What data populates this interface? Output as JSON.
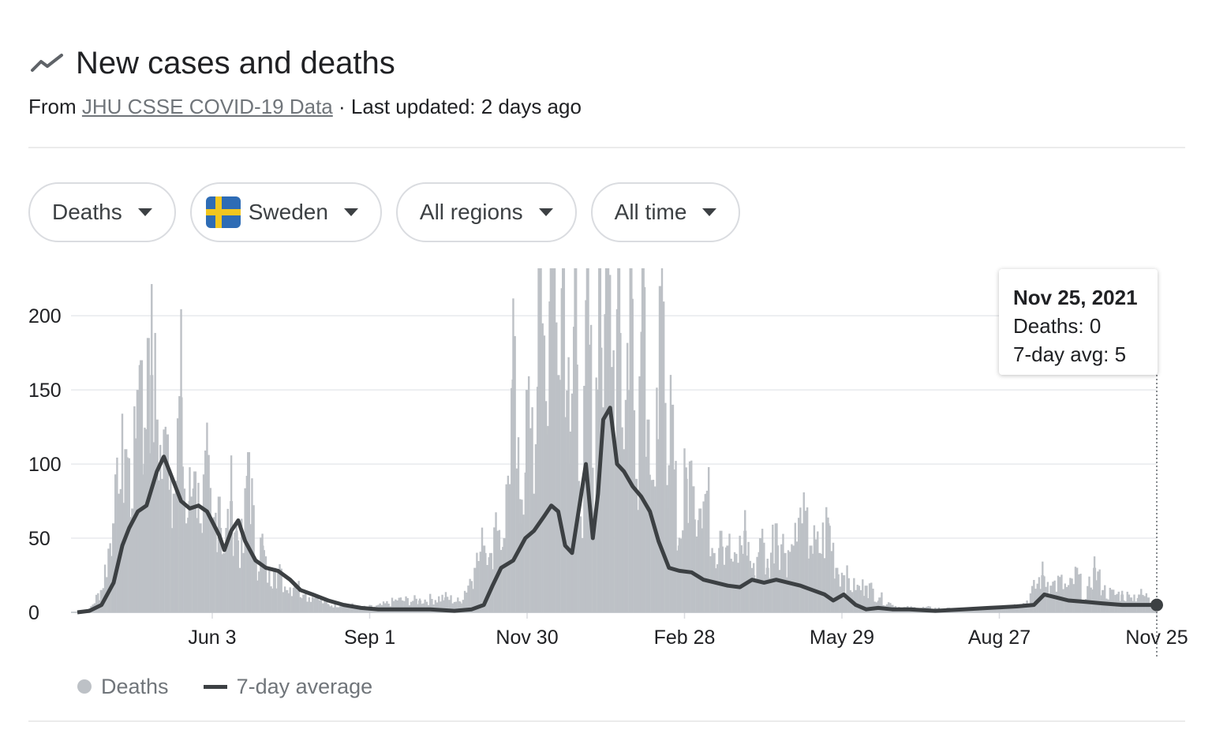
{
  "header": {
    "title": "New cases and deaths",
    "from_label": "From",
    "source_link": "JHU CSSE COVID-19 Data",
    "separator": "·",
    "last_updated": "Last updated: 2 days ago",
    "icon": "trending-line-icon"
  },
  "filters": {
    "metric": "Deaths",
    "country": "Sweden",
    "country_flag_colors": {
      "blue": "#2e6cb5",
      "yellow": "#f2c61f"
    },
    "region": "All regions",
    "timespan": "All time"
  },
  "tooltip": {
    "date": "Nov 25, 2021",
    "deaths": "Deaths: 0",
    "avg": "7-day avg: 5"
  },
  "legend": {
    "deaths": "Deaths",
    "avg": "7-day average"
  },
  "colors": {
    "bars": "#bdc1c6",
    "line": "#3c4043",
    "grid": "#e8eaed"
  },
  "chart_data": {
    "type": "bar",
    "overlay_type": "line",
    "y_ticks": [
      "0",
      "50",
      "100",
      "150",
      "200"
    ],
    "ylim": [
      0,
      232
    ],
    "x_ticks": [
      "Jun 3",
      "Sep 1",
      "Nov 30",
      "Feb 28",
      "May 29",
      "Aug 27",
      "Nov 25"
    ],
    "x_start": "2020-03-11",
    "x_end": "2021-11-25",
    "grid": true,
    "legend_position": "bottom-left",
    "series": [
      {
        "name": "Deaths",
        "kind": "bars",
        "points": [
          [
            "2020-03-11",
            0
          ],
          [
            "2020-03-18",
            2
          ],
          [
            "2020-03-25",
            15
          ],
          [
            "2020-04-01",
            60
          ],
          [
            "2020-04-04",
            80
          ],
          [
            "2020-04-08",
            110
          ],
          [
            "2020-04-12",
            70
          ],
          [
            "2020-04-15",
            150
          ],
          [
            "2020-04-17",
            170
          ],
          [
            "2020-04-19",
            100
          ],
          [
            "2020-04-21",
            185
          ],
          [
            "2020-04-23",
            160
          ],
          [
            "2020-04-26",
            130
          ],
          [
            "2020-04-29",
            90
          ],
          [
            "2020-05-02",
            120
          ],
          [
            "2020-05-06",
            80
          ],
          [
            "2020-05-10",
            145
          ],
          [
            "2020-05-13",
            60
          ],
          [
            "2020-05-15",
            75
          ],
          [
            "2020-05-18",
            95
          ],
          [
            "2020-05-21",
            60
          ],
          [
            "2020-05-25",
            90
          ],
          [
            "2020-05-28",
            50
          ],
          [
            "2020-06-01",
            78
          ],
          [
            "2020-06-04",
            40
          ],
          [
            "2020-06-08",
            75
          ],
          [
            "2020-06-11",
            55
          ],
          [
            "2020-06-15",
            40
          ],
          [
            "2020-06-18",
            108
          ],
          [
            "2020-06-22",
            35
          ],
          [
            "2020-06-26",
            45
          ],
          [
            "2020-06-29",
            20
          ],
          [
            "2020-07-03",
            30
          ],
          [
            "2020-07-06",
            25
          ],
          [
            "2020-07-10",
            15
          ],
          [
            "2020-07-15",
            20
          ],
          [
            "2020-07-20",
            12
          ],
          [
            "2020-07-27",
            10
          ],
          [
            "2020-08-03",
            5
          ],
          [
            "2020-08-12",
            6
          ],
          [
            "2020-08-22",
            3
          ],
          [
            "2020-09-01",
            4
          ],
          [
            "2020-09-12",
            8
          ],
          [
            "2020-09-25",
            8
          ],
          [
            "2020-10-10",
            10
          ],
          [
            "2020-10-18",
            7
          ],
          [
            "2020-10-27",
            30
          ],
          [
            "2020-11-01",
            45
          ],
          [
            "2020-11-05",
            40
          ],
          [
            "2020-11-09",
            55
          ],
          [
            "2020-11-13",
            50
          ],
          [
            "2020-11-18",
            157
          ],
          [
            "2020-11-22",
            60
          ],
          [
            "2020-11-26",
            150
          ],
          [
            "2020-11-30",
            80
          ],
          [
            "2020-12-03",
            232
          ],
          [
            "2020-12-07",
            120
          ],
          [
            "2020-12-10",
            232
          ],
          [
            "2020-12-14",
            160
          ],
          [
            "2020-12-17",
            232
          ],
          [
            "2020-12-21",
            100
          ],
          [
            "2020-12-24",
            232
          ],
          [
            "2020-12-28",
            50
          ],
          [
            "2020-12-31",
            232
          ],
          [
            "2021-01-04",
            60
          ],
          [
            "2021-01-07",
            232
          ],
          [
            "2021-01-11",
            232
          ],
          [
            "2021-01-14",
            150
          ],
          [
            "2021-01-18",
            232
          ],
          [
            "2021-01-21",
            110
          ],
          [
            "2021-01-25",
            232
          ],
          [
            "2021-01-28",
            90
          ],
          [
            "2021-02-01",
            232
          ],
          [
            "2021-02-04",
            130
          ],
          [
            "2021-02-08",
            60
          ],
          [
            "2021-02-11",
            220
          ],
          [
            "2021-02-15",
            70
          ],
          [
            "2021-02-18",
            140
          ],
          [
            "2021-02-22",
            45
          ],
          [
            "2021-02-26",
            90
          ],
          [
            "2021-03-02",
            85
          ],
          [
            "2021-03-06",
            70
          ],
          [
            "2021-03-10",
            80
          ],
          [
            "2021-03-14",
            40
          ],
          [
            "2021-03-18",
            55
          ],
          [
            "2021-03-22",
            45
          ],
          [
            "2021-03-26",
            30
          ],
          [
            "2021-04-01",
            55
          ],
          [
            "2021-04-06",
            25
          ],
          [
            "2021-04-10",
            50
          ],
          [
            "2021-04-14",
            30
          ],
          [
            "2021-04-19",
            60
          ],
          [
            "2021-04-24",
            40
          ],
          [
            "2021-04-29",
            45
          ],
          [
            "2021-05-04",
            60
          ],
          [
            "2021-05-09",
            45
          ],
          [
            "2021-05-14",
            40
          ],
          [
            "2021-05-19",
            60
          ],
          [
            "2021-05-24",
            30
          ],
          [
            "2021-05-28",
            25
          ],
          [
            "2021-06-04",
            15
          ],
          [
            "2021-06-10",
            18
          ],
          [
            "2021-06-18",
            10
          ],
          [
            "2021-06-25",
            5
          ],
          [
            "2021-07-01",
            3
          ],
          [
            "2021-07-15",
            3
          ],
          [
            "2021-08-01",
            2
          ],
          [
            "2021-08-20",
            3
          ],
          [
            "2021-09-01",
            4
          ],
          [
            "2021-09-10",
            6
          ],
          [
            "2021-09-20",
            25
          ],
          [
            "2021-09-25",
            18
          ],
          [
            "2021-09-30",
            20
          ],
          [
            "2021-10-05",
            15
          ],
          [
            "2021-10-10",
            25
          ],
          [
            "2021-10-15",
            8
          ],
          [
            "2021-10-20",
            30
          ],
          [
            "2021-10-25",
            15
          ],
          [
            "2021-10-30",
            12
          ],
          [
            "2021-11-05",
            12
          ],
          [
            "2021-11-10",
            10
          ],
          [
            "2021-11-15",
            12
          ],
          [
            "2021-11-20",
            10
          ],
          [
            "2021-11-25",
            0
          ]
        ]
      },
      {
        "name": "7-day average",
        "kind": "line",
        "points": [
          [
            "2020-03-11",
            0
          ],
          [
            "2020-03-18",
            1
          ],
          [
            "2020-03-25",
            5
          ],
          [
            "2020-04-01",
            20
          ],
          [
            "2020-04-06",
            45
          ],
          [
            "2020-04-10",
            57
          ],
          [
            "2020-04-15",
            68
          ],
          [
            "2020-04-20",
            72
          ],
          [
            "2020-04-26",
            95
          ],
          [
            "2020-04-30",
            105
          ],
          [
            "2020-05-05",
            90
          ],
          [
            "2020-05-10",
            75
          ],
          [
            "2020-05-15",
            70
          ],
          [
            "2020-05-20",
            72
          ],
          [
            "2020-05-25",
            68
          ],
          [
            "2020-06-01",
            52
          ],
          [
            "2020-06-04",
            42
          ],
          [
            "2020-06-08",
            55
          ],
          [
            "2020-06-12",
            62
          ],
          [
            "2020-06-16",
            48
          ],
          [
            "2020-06-22",
            35
          ],
          [
            "2020-06-28",
            30
          ],
          [
            "2020-07-05",
            28
          ],
          [
            "2020-07-12",
            22
          ],
          [
            "2020-07-18",
            15
          ],
          [
            "2020-07-25",
            12
          ],
          [
            "2020-08-03",
            8
          ],
          [
            "2020-08-12",
            5
          ],
          [
            "2020-08-22",
            3
          ],
          [
            "2020-09-01",
            2
          ],
          [
            "2020-09-15",
            2
          ],
          [
            "2020-10-01",
            2
          ],
          [
            "2020-10-15",
            1
          ],
          [
            "2020-10-25",
            2
          ],
          [
            "2020-11-01",
            5
          ],
          [
            "2020-11-06",
            18
          ],
          [
            "2020-11-11",
            30
          ],
          [
            "2020-11-18",
            35
          ],
          [
            "2020-11-25",
            50
          ],
          [
            "2020-11-30",
            55
          ],
          [
            "2020-12-06",
            65
          ],
          [
            "2020-12-10",
            72
          ],
          [
            "2020-12-14",
            68
          ],
          [
            "2020-12-18",
            45
          ],
          [
            "2020-12-22",
            40
          ],
          [
            "2020-12-26",
            70
          ],
          [
            "2020-12-30",
            100
          ],
          [
            "2021-01-03",
            50
          ],
          [
            "2021-01-06",
            80
          ],
          [
            "2021-01-09",
            130
          ],
          [
            "2021-01-13",
            138
          ],
          [
            "2021-01-17",
            100
          ],
          [
            "2021-01-21",
            95
          ],
          [
            "2021-01-26",
            85
          ],
          [
            "2021-01-31",
            78
          ],
          [
            "2021-02-05",
            68
          ],
          [
            "2021-02-10",
            48
          ],
          [
            "2021-02-16",
            30
          ],
          [
            "2021-02-22",
            28
          ],
          [
            "2021-03-01",
            27
          ],
          [
            "2021-03-08",
            22
          ],
          [
            "2021-03-15",
            20
          ],
          [
            "2021-03-22",
            18
          ],
          [
            "2021-03-29",
            17
          ],
          [
            "2021-04-05",
            22
          ],
          [
            "2021-04-12",
            20
          ],
          [
            "2021-04-19",
            22
          ],
          [
            "2021-04-26",
            20
          ],
          [
            "2021-05-03",
            18
          ],
          [
            "2021-05-10",
            15
          ],
          [
            "2021-05-17",
            12
          ],
          [
            "2021-05-22",
            8
          ],
          [
            "2021-05-28",
            12
          ],
          [
            "2021-06-04",
            5
          ],
          [
            "2021-06-10",
            2
          ],
          [
            "2021-06-17",
            3
          ],
          [
            "2021-06-25",
            2
          ],
          [
            "2021-07-05",
            2
          ],
          [
            "2021-07-20",
            1
          ],
          [
            "2021-08-05",
            2
          ],
          [
            "2021-08-20",
            3
          ],
          [
            "2021-09-05",
            4
          ],
          [
            "2021-09-15",
            5
          ],
          [
            "2021-09-21",
            12
          ],
          [
            "2021-09-28",
            10
          ],
          [
            "2021-10-05",
            8
          ],
          [
            "2021-10-15",
            7
          ],
          [
            "2021-10-25",
            6
          ],
          [
            "2021-11-05",
            5
          ],
          [
            "2021-11-15",
            5
          ],
          [
            "2021-11-25",
            5
          ]
        ]
      }
    ]
  }
}
